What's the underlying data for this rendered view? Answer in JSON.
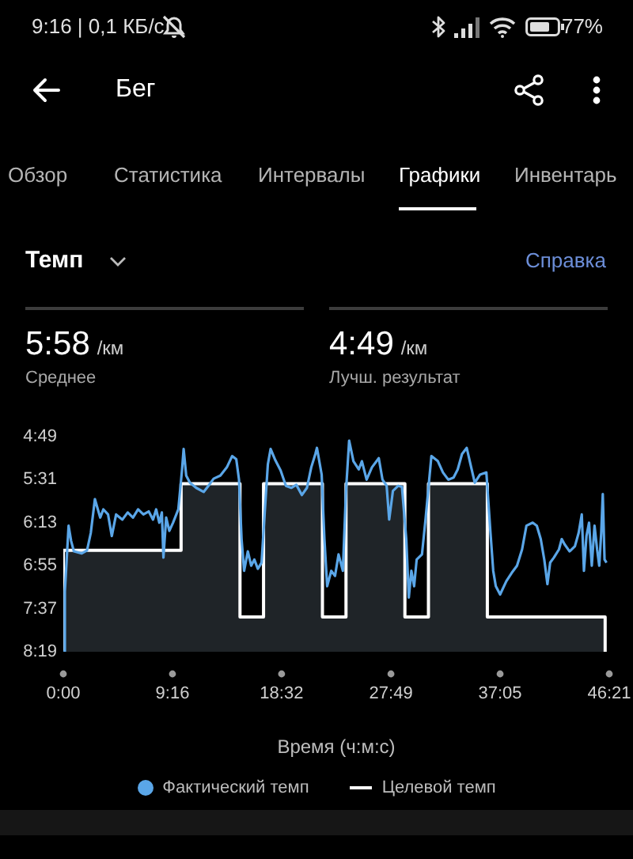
{
  "chart_data": {
    "type": "area",
    "title": "Темп",
    "xlabel": "Время (ч:м:с)",
    "annotations": [
      "9:16 | 0,1 КБ/с",
      "77%",
      "Бег",
      "Обзор",
      "Статистика",
      "Интервалы",
      "Графики",
      "Инвентарь",
      "Справка",
      "5:58 /км",
      "Среднее",
      "4:49 /км",
      "Лучш. результат"
    ],
    "xlim": [
      0,
      2781
    ],
    "xticks": [
      {
        "value": 0,
        "label": "0:00"
      },
      {
        "value": 556,
        "label": "9:16"
      },
      {
        "value": 1112,
        "label": "18:32"
      },
      {
        "value": 1669,
        "label": "27:49"
      },
      {
        "value": 2225,
        "label": "37:05"
      },
      {
        "value": 2781,
        "label": "46:21"
      }
    ],
    "ylim": [
      499,
      289
    ],
    "yticks": [
      {
        "value": 289,
        "label": "4:49"
      },
      {
        "value": 331,
        "label": "5:31"
      },
      {
        "value": 373,
        "label": "6:13"
      },
      {
        "value": 415,
        "label": "6:55"
      },
      {
        "value": 457,
        "label": "7:37"
      },
      {
        "value": 499,
        "label": "8:19"
      }
    ],
    "legend": "bottom",
    "marker": "none",
    "series": [
      {
        "name": "Фактический темп",
        "type": "line",
        "color": "#5aa6e8",
        "x": [
          0,
          8,
          27,
          40,
          54,
          94,
          121,
          140,
          161,
          188,
          204,
          228,
          247,
          269,
          301,
          328,
          355,
          381,
          408,
          435,
          457,
          473,
          489,
          502,
          510,
          524,
          540,
          559,
          586,
          605,
          613,
          626,
          645,
          677,
          715,
          739,
          766,
          800,
          833,
          860,
          881,
          895,
          908,
          921,
          940,
          957,
          973,
          991,
          1010,
          1026,
          1042,
          1056,
          1080,
          1107,
          1134,
          1161,
          1187,
          1215,
          1241,
          1263,
          1284,
          1292,
          1316,
          1330,
          1344,
          1365,
          1384,
          1402,
          1424,
          1440,
          1456,
          1478,
          1505,
          1521,
          1545,
          1572,
          1607,
          1626,
          1647,
          1660,
          1679,
          1706,
          1725,
          1747,
          1760,
          1773,
          1787,
          1800,
          1827,
          1846,
          1875,
          1908,
          1934,
          1961,
          1988,
          2009,
          2031,
          2055,
          2074,
          2096,
          2123,
          2155,
          2176,
          2190,
          2203,
          2225,
          2257,
          2284,
          2311,
          2337,
          2359,
          2391,
          2412,
          2432,
          2450,
          2466,
          2480,
          2499,
          2525,
          2539,
          2553,
          2579,
          2606,
          2625,
          2641,
          2652,
          2665,
          2678,
          2692,
          2706,
          2719,
          2730,
          2740,
          2748,
          2757,
          2767
        ],
        "values": [
          499,
          440,
          376,
          391,
          401,
          403,
          400,
          383,
          350,
          368,
          360,
          365,
          386,
          365,
          370,
          363,
          368,
          360,
          365,
          362,
          370,
          360,
          373,
          363,
          407,
          368,
          381,
          373,
          360,
          321,
          301,
          327,
          334,
          339,
          343,
          337,
          330,
          327,
          319,
          308,
          311,
          331,
          389,
          420,
          401,
          415,
          409,
          418,
          412,
          363,
          316,
          301,
          312,
          322,
          337,
          339,
          336,
          346,
          339,
          319,
          306,
          300,
          326,
          389,
          435,
          420,
          425,
          404,
          420,
          342,
          293,
          313,
          321,
          313,
          331,
          319,
          310,
          331,
          337,
          370,
          342,
          337,
          338,
          389,
          446,
          420,
          435,
          409,
          404,
          368,
          308,
          313,
          324,
          331,
          329,
          321,
          306,
          300,
          316,
          334,
          326,
          324,
          383,
          420,
          435,
          443,
          430,
          422,
          415,
          399,
          376,
          373,
          376,
          389,
          409,
          433,
          412,
          407,
          399,
          389,
          394,
          401,
          396,
          383,
          365,
          420,
          386,
          373,
          415,
          376,
          399,
          415,
          383,
          345,
          409,
          412
        ]
      },
      {
        "name": "Целевой темп",
        "color": "#ffffff",
        "x": [
          0,
          0,
          600,
          600,
          900,
          900,
          1020,
          1020,
          1320,
          1320,
          1440,
          1440,
          1740,
          1740,
          1860,
          1860,
          2160,
          2160,
          2760,
          2760
        ],
        "values": [
          499,
          400,
          400,
          335,
          335,
          465,
          465,
          335,
          335,
          465,
          465,
          335,
          335,
          465,
          465,
          335,
          335,
          465,
          465,
          499
        ]
      }
    ]
  }
}
